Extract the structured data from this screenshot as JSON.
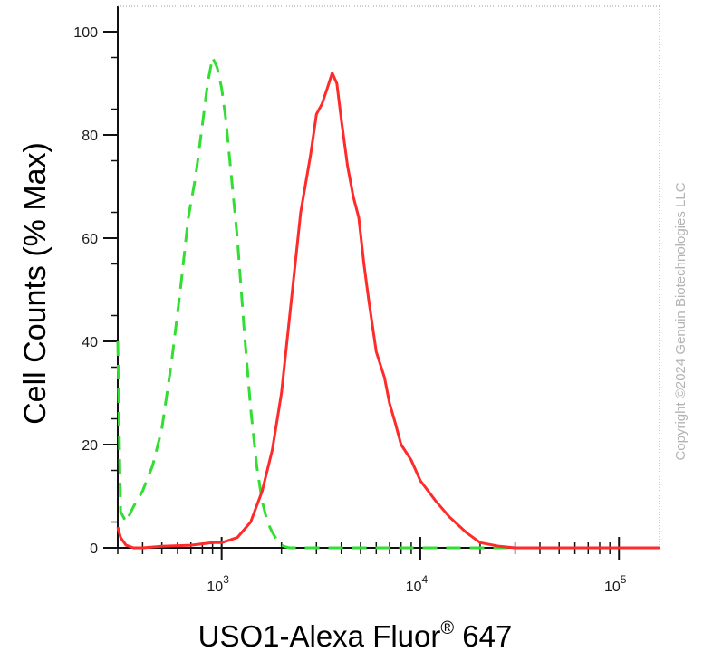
{
  "chart_data": {
    "type": "line",
    "title": "",
    "xlabel": "USO1-Alexa Fluor",
    "xlabel_sup": "®",
    "xlabel_suffix": " 647",
    "ylabel": "Cell Counts (% Max)",
    "x_scale": "log",
    "xlim": [
      300,
      160000
    ],
    "ylim": [
      0,
      105
    ],
    "grid": false,
    "y_ticks": [
      0,
      20,
      40,
      60,
      80,
      100
    ],
    "x_ticks": [
      {
        "value": 1000,
        "base": "10",
        "exp": "3"
      },
      {
        "value": 10000,
        "base": "10",
        "exp": "4"
      },
      {
        "value": 100000,
        "base": "10",
        "exp": "5"
      }
    ],
    "series": [
      {
        "color": "#33dd33",
        "dash": true,
        "x": [
          300,
          310,
          330,
          360,
          400,
          450,
          500,
          560,
          620,
          680,
          740,
          800,
          850,
          900,
          950,
          1000,
          1050,
          1100,
          1200,
          1300,
          1400,
          1500,
          1600,
          1700,
          1800,
          1900,
          2000,
          2100,
          2200,
          2400,
          3000,
          5000,
          10000,
          20000,
          50000,
          100000,
          160000
        ],
        "y": [
          40,
          7,
          5,
          8,
          11,
          16,
          23,
          36,
          50,
          64,
          72,
          82,
          90,
          95,
          93,
          89,
          83,
          75,
          60,
          42,
          27,
          16,
          9,
          5,
          3,
          1.5,
          0.5,
          0.2,
          0,
          0,
          0,
          0,
          0,
          0,
          0,
          0,
          0
        ]
      },
      {
        "color": "#ff2a2a",
        "dash": false,
        "x": [
          300,
          310,
          330,
          360,
          400,
          500,
          700,
          900,
          1000,
          1200,
          1400,
          1600,
          1800,
          2000,
          2200,
          2500,
          2800,
          3000,
          3200,
          3400,
          3600,
          3800,
          4000,
          4300,
          4600,
          4900,
          5200,
          5500,
          6000,
          6600,
          7000,
          7500,
          8000,
          9000,
          10000,
          12000,
          14000,
          17000,
          20000,
          25000,
          30000,
          50000,
          100000,
          160000
        ],
        "y": [
          4,
          2,
          0.5,
          0,
          0,
          0.3,
          0.5,
          1,
          1,
          2,
          5,
          11,
          19,
          30,
          45,
          65,
          76,
          84,
          86,
          89,
          92,
          90,
          83,
          74,
          68,
          64,
          55,
          48,
          38,
          33,
          28,
          24,
          20,
          17,
          13,
          9,
          6,
          3,
          1,
          0.3,
          0,
          0,
          0,
          0
        ]
      }
    ]
  },
  "watermark": "Copyright ©2024 Genuin Biotechnologies LLC"
}
